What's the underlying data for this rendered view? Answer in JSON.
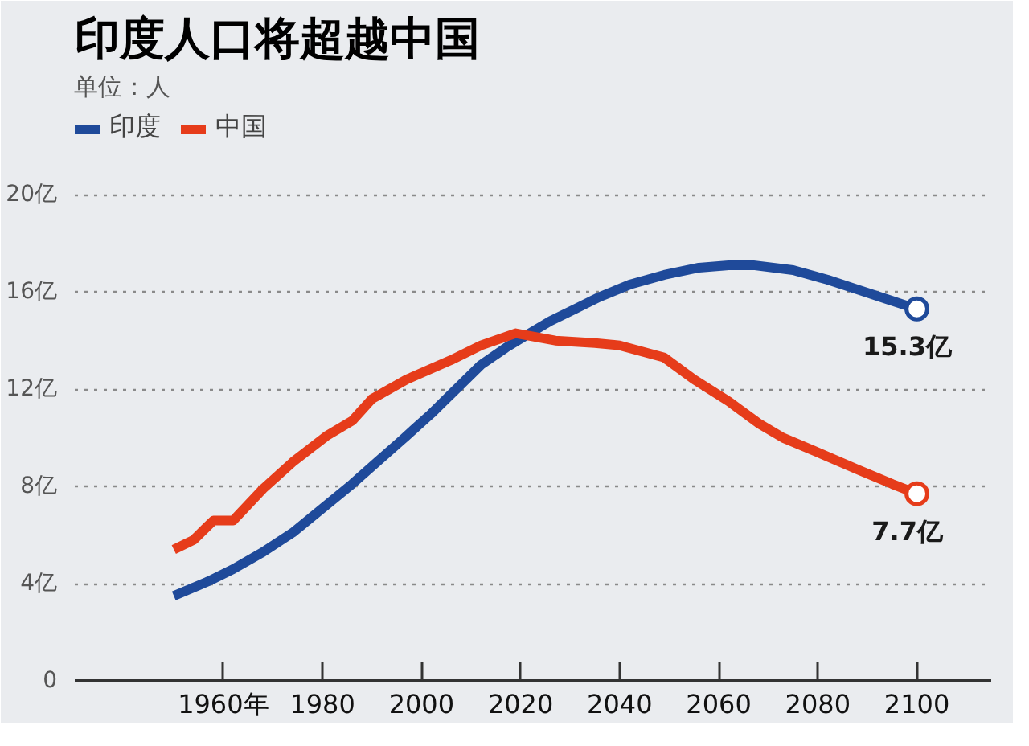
{
  "chart_data": {
    "type": "line",
    "title": "印度人口将超越中国",
    "legend_title": "单位：人",
    "legend": "top left",
    "grid": "y",
    "xlim": [
      1930,
      2115
    ],
    "xticks": [
      {
        "value": 1960,
        "label": "1960年"
      },
      1980,
      2000,
      2020,
      2040,
      2060,
      2080,
      2100
    ],
    "ylim": [
      0,
      25
    ],
    "yticks": [
      0,
      {
        "value": 4,
        "label": "4亿"
      },
      {
        "value": 8,
        "label": "8亿"
      },
      {
        "value": 12,
        "label": "12亿"
      },
      {
        "value": 16,
        "label": "16亿"
      },
      {
        "value": 20,
        "label": "20亿"
      }
    ],
    "series": [
      {
        "name": "印度",
        "color": "#1f4a9a",
        "x": [
          1950,
          1957,
          1962,
          1968,
          1974,
          1980,
          1986,
          1991,
          1996,
          2002,
          2007,
          2012,
          2017,
          2021,
          2026,
          2031,
          2036,
          2042,
          2049,
          2056,
          2062,
          2067,
          2075,
          2082,
          2088,
          2094,
          2100
        ],
        "values": [
          3.5,
          4.1,
          4.6,
          5.3,
          6.1,
          7.1,
          8.1,
          9.0,
          9.9,
          11.0,
          12.0,
          13.0,
          13.7,
          14.2,
          14.8,
          15.3,
          15.8,
          16.3,
          16.7,
          17.0,
          17.1,
          17.1,
          16.9,
          16.5,
          16.1,
          15.7,
          15.3
        ]
      },
      {
        "name": "中国",
        "color": "#e63c1a",
        "x": [
          1950,
          1954,
          1958,
          1962,
          1968,
          1974,
          1981,
          1986,
          1990,
          1997,
          2006,
          2012,
          2019,
          2027,
          2035,
          2040,
          2049,
          2055,
          2062,
          2068,
          2073,
          2080,
          2088,
          2095,
          2100
        ],
        "values": [
          5.4,
          5.8,
          6.6,
          6.6,
          7.9,
          9.0,
          10.1,
          10.7,
          11.6,
          12.4,
          13.2,
          13.8,
          14.3,
          14.0,
          13.9,
          13.8,
          13.3,
          12.4,
          11.5,
          10.6,
          10.0,
          9.4,
          8.7,
          8.1,
          7.7
        ]
      }
    ],
    "annotations": [
      {
        "text": "15.3亿",
        "x": 2100,
        "y": 15.3
      },
      {
        "text": "7.7亿",
        "x": 2100,
        "y": 7.7
      }
    ]
  }
}
